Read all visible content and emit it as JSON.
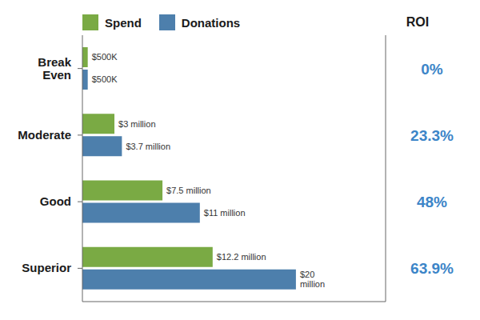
{
  "chart_data": {
    "type": "bar",
    "orientation": "horizontal",
    "categories": [
      "Break\nEven",
      "Moderate",
      "Good",
      "Superior"
    ],
    "series": [
      {
        "name": "Spend",
        "color": "#7aaa44",
        "values": [
          0.5,
          3.0,
          7.5,
          12.2
        ],
        "value_labels": [
          "$500K",
          "$3 million",
          "$7.5 million",
          "$12.2 million"
        ]
      },
      {
        "name": "Donations",
        "color": "#4d7fac",
        "values": [
          0.5,
          3.7,
          11.0,
          20.0
        ],
        "value_labels": [
          "$500K",
          "$3.7 million",
          "$11 million",
          "$20\nmillion"
        ]
      }
    ],
    "roi": {
      "title": "ROI",
      "values": [
        0,
        23.3,
        48,
        63.9
      ],
      "value_labels": [
        "0%",
        "23.3%",
        "48%",
        "63.9%"
      ],
      "color": "#3c85c8"
    },
    "xlim": [
      0,
      28.4
    ],
    "data_labels": true,
    "tick_labels": "y",
    "grid": false
  }
}
